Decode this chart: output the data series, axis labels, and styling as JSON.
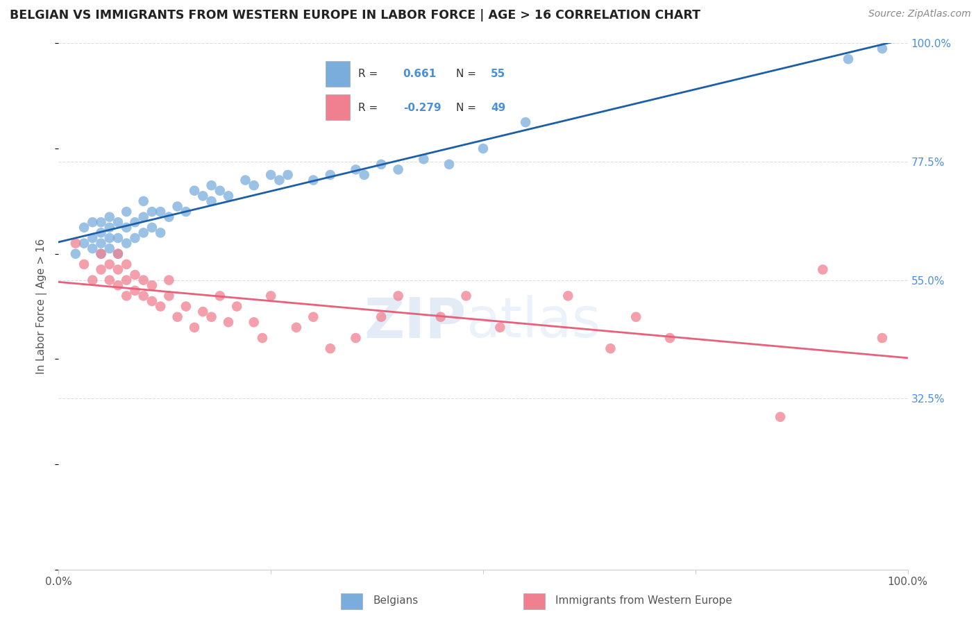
{
  "title": "BELGIAN VS IMMIGRANTS FROM WESTERN EUROPE IN LABOR FORCE | AGE > 16 CORRELATION CHART",
  "source": "Source: ZipAtlas.com",
  "ylabel": "In Labor Force | Age > 16",
  "xlim": [
    0.0,
    1.0
  ],
  "ylim": [
    0.0,
    1.0
  ],
  "ytick_positions": [
    0.325,
    0.55,
    0.775,
    1.0
  ],
  "ytick_labels": [
    "32.5%",
    "55.0%",
    "77.5%",
    "100.0%"
  ],
  "belgian_color": "#7aacdc",
  "immigrant_color": "#f08090",
  "belgian_line_color": "#1a5fa8",
  "immigrant_line_color": "#e8607a",
  "background_color": "#ffffff",
  "grid_color": "#dddddd",
  "legend_R_belgian": "0.661",
  "legend_N_belgian": "55",
  "legend_R_immigrant": "-0.279",
  "legend_N_immigrant": "49",
  "accent_color": "#4a90d9",
  "belgian_x": [
    0.02,
    0.03,
    0.03,
    0.04,
    0.04,
    0.04,
    0.05,
    0.05,
    0.05,
    0.05,
    0.06,
    0.06,
    0.06,
    0.06,
    0.07,
    0.07,
    0.07,
    0.08,
    0.08,
    0.08,
    0.09,
    0.09,
    0.1,
    0.1,
    0.1,
    0.11,
    0.11,
    0.12,
    0.12,
    0.13,
    0.14,
    0.15,
    0.16,
    0.17,
    0.18,
    0.18,
    0.19,
    0.2,
    0.22,
    0.23,
    0.25,
    0.26,
    0.27,
    0.3,
    0.32,
    0.35,
    0.36,
    0.38,
    0.4,
    0.43,
    0.46,
    0.5,
    0.55,
    0.93,
    0.97
  ],
  "belgian_y": [
    0.6,
    0.62,
    0.65,
    0.61,
    0.63,
    0.66,
    0.6,
    0.62,
    0.64,
    0.66,
    0.61,
    0.63,
    0.65,
    0.67,
    0.6,
    0.63,
    0.66,
    0.62,
    0.65,
    0.68,
    0.63,
    0.66,
    0.64,
    0.67,
    0.7,
    0.65,
    0.68,
    0.64,
    0.68,
    0.67,
    0.69,
    0.68,
    0.72,
    0.71,
    0.7,
    0.73,
    0.72,
    0.71,
    0.74,
    0.73,
    0.75,
    0.74,
    0.75,
    0.74,
    0.75,
    0.76,
    0.75,
    0.77,
    0.76,
    0.78,
    0.77,
    0.8,
    0.85,
    0.97,
    0.99
  ],
  "immigrant_x": [
    0.02,
    0.03,
    0.04,
    0.05,
    0.05,
    0.06,
    0.06,
    0.07,
    0.07,
    0.07,
    0.08,
    0.08,
    0.08,
    0.09,
    0.09,
    0.1,
    0.1,
    0.11,
    0.11,
    0.12,
    0.13,
    0.13,
    0.14,
    0.15,
    0.16,
    0.17,
    0.18,
    0.19,
    0.2,
    0.21,
    0.23,
    0.24,
    0.25,
    0.28,
    0.3,
    0.32,
    0.35,
    0.38,
    0.4,
    0.45,
    0.48,
    0.52,
    0.6,
    0.65,
    0.68,
    0.72,
    0.85,
    0.9,
    0.97
  ],
  "immigrant_y": [
    0.62,
    0.58,
    0.55,
    0.6,
    0.57,
    0.55,
    0.58,
    0.54,
    0.57,
    0.6,
    0.52,
    0.55,
    0.58,
    0.53,
    0.56,
    0.52,
    0.55,
    0.51,
    0.54,
    0.5,
    0.52,
    0.55,
    0.48,
    0.5,
    0.46,
    0.49,
    0.48,
    0.52,
    0.47,
    0.5,
    0.47,
    0.44,
    0.52,
    0.46,
    0.48,
    0.42,
    0.44,
    0.48,
    0.52,
    0.48,
    0.52,
    0.46,
    0.52,
    0.42,
    0.48,
    0.44,
    0.29,
    0.57,
    0.44
  ]
}
